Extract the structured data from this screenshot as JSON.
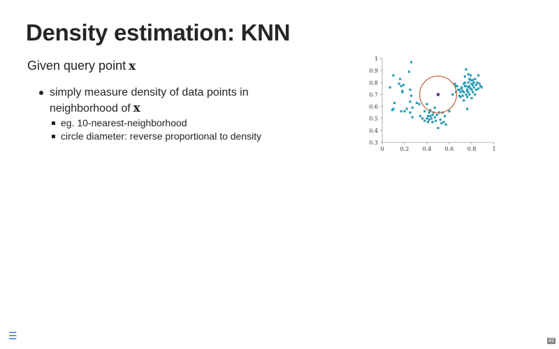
{
  "slide": {
    "title": "Density estimation: KNN",
    "subtitle_text": "Given query point",
    "subtitle_math": "x",
    "bullets": [
      {
        "text_line1": "simply measure density of data points in",
        "text_line2": "neighborhood of",
        "math": "x"
      }
    ],
    "sub_bullets": [
      "eg. 10-nearest-neighborhood",
      "circle diameter: reverse proportional to density"
    ],
    "page_number": "42",
    "menu_icon": "hamburger-menu-icon"
  },
  "chart_data": {
    "type": "scatter",
    "xlim": [
      0,
      1
    ],
    "ylim": [
      0.3,
      1
    ],
    "x_ticks": [
      "0",
      "0.2",
      "0.4",
      "0.6",
      "0.8",
      "1"
    ],
    "y_ticks": [
      "0.3",
      "0.4",
      "0.5",
      "0.6",
      "0.7",
      "0.8",
      "0.9",
      "1"
    ],
    "grid": false,
    "colors": {
      "points": "#2a9ab5",
      "query": "#5a2a7a",
      "circle": "#c86a45"
    },
    "query_point": {
      "x": 0.5,
      "y": 0.7
    },
    "circle_radius_x": 0.165,
    "points": [
      [
        0.07,
        0.76
      ],
      [
        0.09,
        0.57
      ],
      [
        0.1,
        0.86
      ],
      [
        0.1,
        0.58
      ],
      [
        0.11,
        0.63
      ],
      [
        0.15,
        0.79
      ],
      [
        0.16,
        0.83
      ],
      [
        0.17,
        0.77
      ],
      [
        0.17,
        0.56
      ],
      [
        0.18,
        0.72
      ],
      [
        0.18,
        0.73
      ],
      [
        0.19,
        0.78
      ],
      [
        0.2,
        0.56
      ],
      [
        0.22,
        0.58
      ],
      [
        0.24,
        0.89
      ],
      [
        0.25,
        0.64
      ],
      [
        0.25,
        0.55
      ],
      [
        0.25,
        0.74
      ],
      [
        0.26,
        0.97
      ],
      [
        0.26,
        0.69
      ],
      [
        0.27,
        0.51
      ],
      [
        0.27,
        0.59
      ],
      [
        0.31,
        0.63
      ],
      [
        0.33,
        0.62
      ],
      [
        0.34,
        0.52
      ],
      [
        0.36,
        0.5
      ],
      [
        0.38,
        0.56
      ],
      [
        0.38,
        0.48
      ],
      [
        0.4,
        0.5
      ],
      [
        0.4,
        0.62
      ],
      [
        0.41,
        0.52
      ],
      [
        0.41,
        0.47
      ],
      [
        0.42,
        0.55
      ],
      [
        0.42,
        0.49
      ],
      [
        0.43,
        0.57
      ],
      [
        0.43,
        0.52
      ],
      [
        0.44,
        0.5
      ],
      [
        0.45,
        0.53
      ],
      [
        0.45,
        0.47
      ],
      [
        0.46,
        0.55
      ],
      [
        0.47,
        0.59
      ],
      [
        0.47,
        0.51
      ],
      [
        0.48,
        0.48
      ],
      [
        0.49,
        0.53
      ],
      [
        0.5,
        0.42
      ],
      [
        0.51,
        0.55
      ],
      [
        0.52,
        0.49
      ],
      [
        0.53,
        0.46
      ],
      [
        0.54,
        0.55
      ],
      [
        0.55,
        0.47
      ],
      [
        0.56,
        0.52
      ],
      [
        0.57,
        0.45
      ],
      [
        0.6,
        0.56
      ],
      [
        0.63,
        0.7
      ],
      [
        0.65,
        0.79
      ],
      [
        0.66,
        0.77
      ],
      [
        0.66,
        0.72
      ],
      [
        0.67,
        0.77
      ],
      [
        0.68,
        0.74
      ],
      [
        0.69,
        0.74
      ],
      [
        0.69,
        0.69
      ],
      [
        0.7,
        0.72
      ],
      [
        0.7,
        0.68
      ],
      [
        0.71,
        0.76
      ],
      [
        0.71,
        0.75
      ],
      [
        0.72,
        0.73
      ],
      [
        0.72,
        0.69
      ],
      [
        0.73,
        0.79
      ],
      [
        0.73,
        0.72
      ],
      [
        0.73,
        0.65
      ],
      [
        0.74,
        0.85
      ],
      [
        0.74,
        0.8
      ],
      [
        0.74,
        0.77
      ],
      [
        0.75,
        0.91
      ],
      [
        0.75,
        0.77
      ],
      [
        0.75,
        0.7
      ],
      [
        0.76,
        0.74
      ],
      [
        0.76,
        0.73
      ],
      [
        0.76,
        0.68
      ],
      [
        0.76,
        0.58
      ],
      [
        0.77,
        0.87
      ],
      [
        0.77,
        0.8
      ],
      [
        0.77,
        0.76
      ],
      [
        0.77,
        0.72
      ],
      [
        0.78,
        0.83
      ],
      [
        0.78,
        0.77
      ],
      [
        0.78,
        0.7
      ],
      [
        0.79,
        0.86
      ],
      [
        0.79,
        0.82
      ],
      [
        0.79,
        0.75
      ],
      [
        0.8,
        0.79
      ],
      [
        0.8,
        0.74
      ],
      [
        0.8,
        0.67
      ],
      [
        0.81,
        0.82
      ],
      [
        0.81,
        0.78
      ],
      [
        0.81,
        0.72
      ],
      [
        0.82,
        0.8
      ],
      [
        0.82,
        0.76
      ],
      [
        0.83,
        0.83
      ],
      [
        0.83,
        0.7
      ],
      [
        0.84,
        0.78
      ],
      [
        0.84,
        0.74
      ],
      [
        0.85,
        0.8
      ],
      [
        0.86,
        0.86
      ],
      [
        0.86,
        0.75
      ],
      [
        0.87,
        0.79
      ],
      [
        0.88,
        0.77
      ],
      [
        0.89,
        0.76
      ]
    ]
  }
}
